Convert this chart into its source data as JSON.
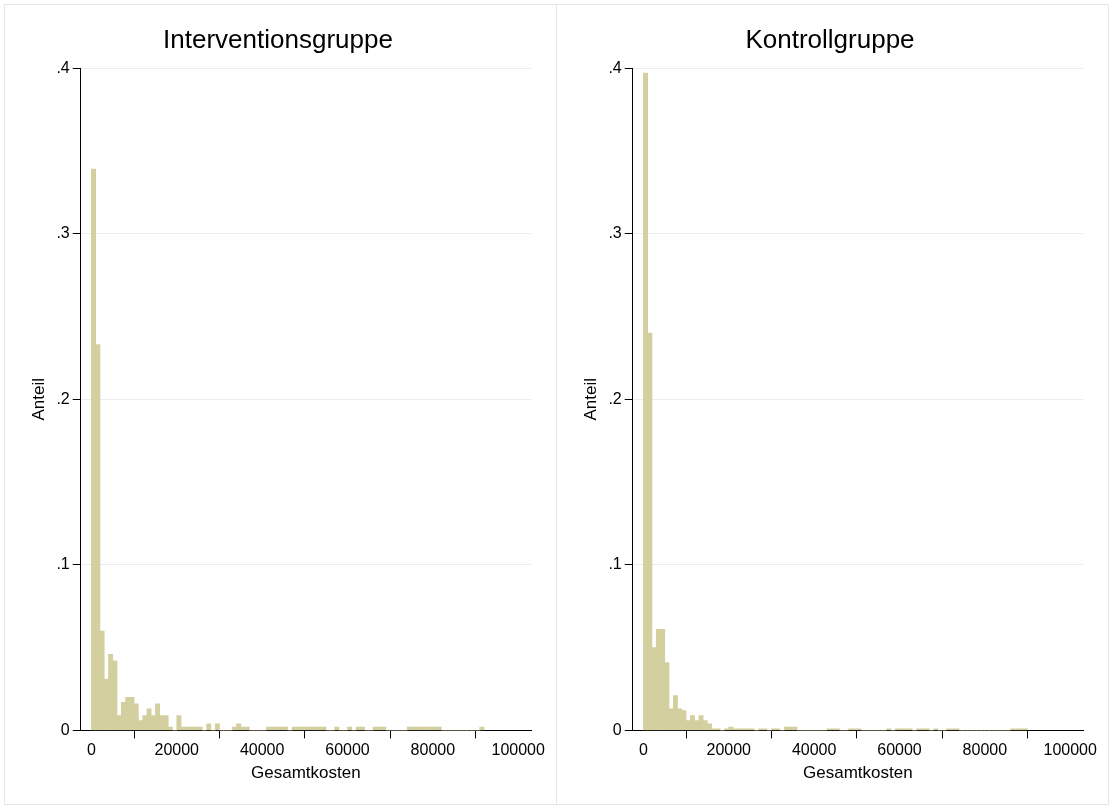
{
  "chart_data": [
    {
      "type": "histogram",
      "title": "Interventionsgruppe",
      "xlabel": "Gesamtkosten",
      "ylabel": "Anteil",
      "color": "#d3cf9e",
      "grid": "y",
      "bins": [
        0,
        1000,
        2000,
        3000,
        4000,
        5000,
        6000,
        7000,
        8000,
        9000,
        10000,
        11000,
        12000,
        13000,
        14000,
        15000,
        16000,
        17000,
        18000,
        19000,
        20000,
        21000,
        22000,
        23000,
        24000,
        25000,
        26000,
        27000,
        28000,
        29000,
        30000,
        31000,
        32000,
        33000,
        34000,
        35000,
        36000,
        37000,
        38000,
        39000,
        40000,
        41000,
        42000,
        43000,
        44000,
        45000,
        46000,
        47000,
        48000,
        49000,
        50000,
        51000,
        52000,
        53000,
        54000,
        55000,
        56000,
        57000,
        58000,
        59000,
        60000,
        61000,
        62000,
        63000,
        64000,
        65000,
        66000,
        67000,
        68000,
        69000,
        70000,
        71000,
        72000,
        73000,
        74000,
        75000,
        76000,
        77000,
        78000,
        79000,
        80000,
        81000,
        82000,
        83000,
        84000,
        85000,
        86000,
        87000,
        88000,
        89000,
        90000,
        91000,
        92000
      ],
      "values": [
        0.339,
        0.233,
        0.06,
        0.031,
        0.046,
        0.042,
        0.009,
        0.017,
        0.02,
        0.02,
        0.016,
        0.006,
        0.009,
        0.013,
        0.009,
        0.016,
        0.009,
        0.009,
        0.002,
        0,
        0.009,
        0.002,
        0.002,
        0.002,
        0.002,
        0.002,
        0,
        0.004,
        0,
        0.004,
        0,
        0,
        0,
        0.002,
        0.004,
        0.002,
        0.002,
        0,
        0,
        0,
        0,
        0.002,
        0.002,
        0.002,
        0.002,
        0.002,
        0,
        0.002,
        0.002,
        0.002,
        0.002,
        0.002,
        0.002,
        0.002,
        0.002,
        0,
        0,
        0.002,
        0,
        0,
        0.002,
        0,
        0.002,
        0.002,
        0,
        0,
        0.002,
        0.002,
        0.002,
        0,
        0,
        0,
        0,
        0,
        0.002,
        0.002,
        0.002,
        0.002,
        0.002,
        0.002,
        0.002,
        0.002,
        0,
        0,
        0,
        0,
        0,
        0,
        0,
        0,
        0,
        0.002
      ],
      "xlim": [
        -2500,
        103000
      ],
      "xticks": [
        0,
        20000,
        40000,
        60000,
        80000,
        100000
      ],
      "ylim": [
        0,
        0.4
      ],
      "yticks": [
        {
          "value": 0,
          "label": "0"
        },
        {
          "value": 0.1,
          "label": ".1"
        },
        {
          "value": 0.2,
          "label": ".2"
        },
        {
          "value": 0.3,
          "label": ".3"
        },
        {
          "value": 0.4,
          "label": ".4"
        }
      ]
    },
    {
      "type": "histogram",
      "title": "Kontrollgruppe",
      "xlabel": "Gesamtkosten",
      "ylabel": "Anteil",
      "color": "#d3cf9e",
      "grid": "y",
      "bins": [
        0,
        1000,
        2000,
        3000,
        4000,
        5000,
        6000,
        7000,
        8000,
        9000,
        10000,
        11000,
        12000,
        13000,
        14000,
        15000,
        16000,
        17000,
        18000,
        19000,
        20000,
        21000,
        22000,
        23000,
        24000,
        25000,
        26000,
        27000,
        28000,
        29000,
        30000,
        31000,
        32000,
        33000,
        34000,
        35000,
        36000,
        37000,
        38000,
        39000,
        40000,
        41000,
        42000,
        43000,
        44000,
        45000,
        46000,
        47000,
        48000,
        49000,
        50000,
        51000,
        52000,
        53000,
        54000,
        55000,
        56000,
        57000,
        58000,
        59000,
        60000,
        61000,
        62000,
        63000,
        64000,
        65000,
        66000,
        67000,
        68000,
        69000,
        70000,
        71000,
        72000,
        73000,
        74000,
        75000,
        76000,
        77000,
        78000,
        79000,
        80000,
        81000,
        82000,
        83000,
        84000,
        85000,
        86000,
        87000,
        88000,
        89000,
        90000
      ],
      "values": [
        0.397,
        0.24,
        0.05,
        0.061,
        0.061,
        0.041,
        0.013,
        0.021,
        0.013,
        0.012,
        0.006,
        0.009,
        0.006,
        0.009,
        0.006,
        0.004,
        0.001,
        0.001,
        0,
        0.001,
        0.002,
        0.001,
        0.001,
        0.001,
        0.001,
        0.001,
        0,
        0.001,
        0.001,
        0,
        0.001,
        0.001,
        0,
        0.002,
        0.002,
        0.002,
        0,
        0,
        0,
        0,
        0,
        0,
        0,
        0.001,
        0.001,
        0.001,
        0,
        0,
        0.001,
        0.001,
        0.001,
        0,
        0,
        0,
        0,
        0,
        0,
        0.001,
        0,
        0.001,
        0.001,
        0.001,
        0.001,
        0,
        0.001,
        0.001,
        0.001,
        0,
        0.001,
        0,
        0,
        0.001,
        0.001,
        0.001,
        0,
        0,
        0,
        0,
        0,
        0,
        0,
        0,
        0,
        0,
        0,
        0,
        0.001,
        0.001,
        0.001,
        0.001
      ],
      "xlim": [
        -2500,
        103000
      ],
      "xticks": [
        0,
        20000,
        40000,
        60000,
        80000,
        100000
      ],
      "ylim": [
        0,
        0.4
      ],
      "yticks": [
        {
          "value": 0,
          "label": "0"
        },
        {
          "value": 0.1,
          "label": ".1"
        },
        {
          "value": 0.2,
          "label": ".2"
        },
        {
          "value": 0.3,
          "label": ".3"
        },
        {
          "value": 0.4,
          "label": ".4"
        }
      ]
    }
  ]
}
